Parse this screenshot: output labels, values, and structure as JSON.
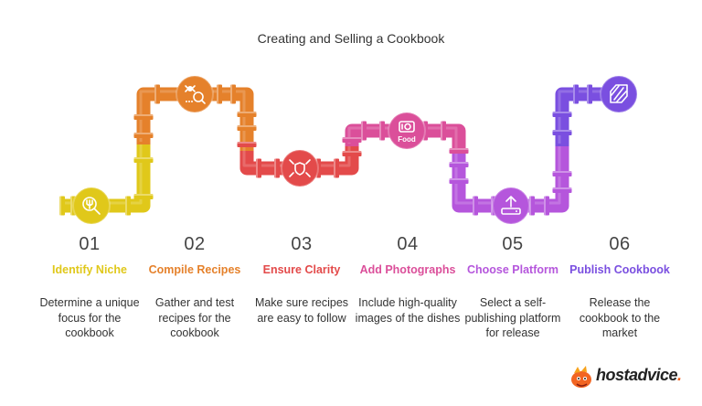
{
  "title": "Creating and Selling a Cookbook",
  "steps": [
    {
      "num": "01",
      "title": "Identify Niche",
      "desc": "Determine a unique focus for the cookbook",
      "color": "#e0c81a",
      "icon": "magnifier-icon"
    },
    {
      "num": "02",
      "title": "Compile Recipes",
      "desc": "Gather and test recipes for the cookbook",
      "color": "#e5812b",
      "icon": "gather-icon"
    },
    {
      "num": "03",
      "title": "Ensure Clarity",
      "desc": "Make sure recipes are easy to follow",
      "color": "#e34a4a",
      "icon": "shield-icon"
    },
    {
      "num": "04",
      "title": "Add Photographs",
      "desc": "Include high-quality images of the dishes",
      "color": "#db4f9a",
      "icon": "camera-food-icon",
      "icon_label": "Food"
    },
    {
      "num": "05",
      "title": "Choose Platform",
      "desc": "Select a self-publishing platform for release",
      "color": "#b556dc",
      "icon": "upload-icon"
    },
    {
      "num": "06",
      "title": "Publish Cookbook",
      "desc": "Release the cookbook to the market",
      "color": "#7a4fe0",
      "icon": "book-icon"
    }
  ],
  "brand": {
    "name": "hostadvice",
    "suffix": "."
  }
}
